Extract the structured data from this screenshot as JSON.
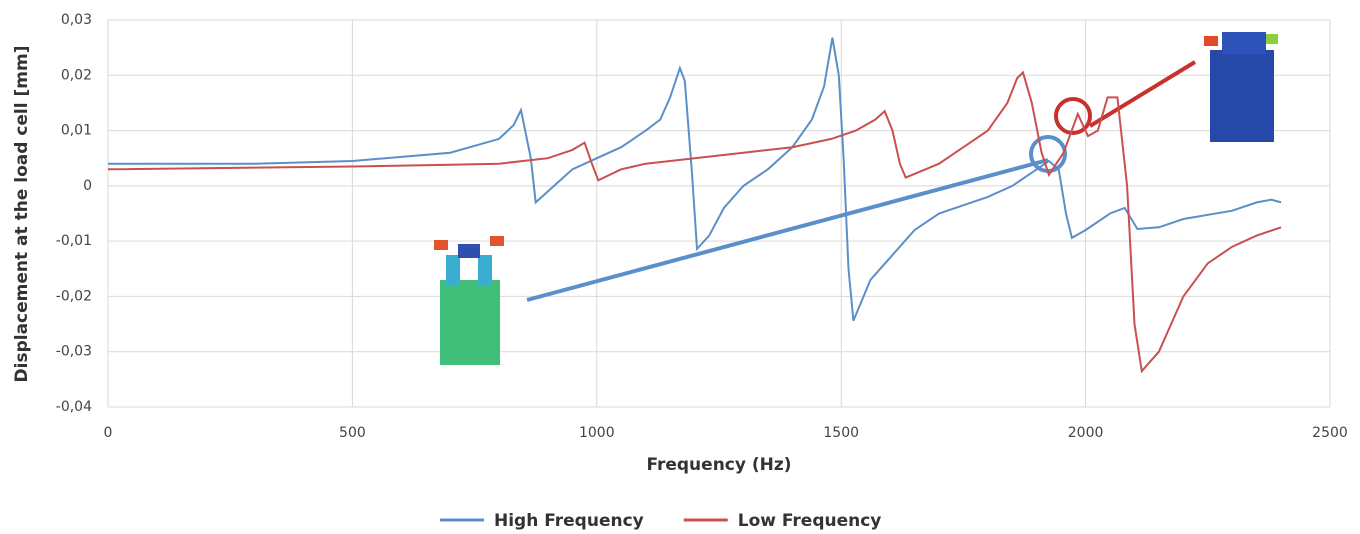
{
  "chart_data": {
    "type": "line",
    "x_label": "Frequency (Hz)",
    "y_label": "Displacement at the load cell [mm]",
    "xlim": [
      0,
      2500
    ],
    "xticks": [
      0,
      500,
      1000,
      1500,
      2000,
      2500
    ],
    "ylim": [
      -0.04,
      0.03
    ],
    "yticks": [
      {
        "value": -0.04,
        "label": "-0,04"
      },
      {
        "value": -0.03,
        "label": "-0,03"
      },
      {
        "value": -0.02,
        "label": "-0,02"
      },
      {
        "value": -0.01,
        "label": "-0,01"
      },
      0,
      {
        "value": 0.01,
        "label": "0,01"
      },
      {
        "value": 0.02,
        "label": "0,02"
      },
      {
        "value": 0.03,
        "label": "0,03"
      }
    ],
    "grid": true,
    "legend": "bottom",
    "series": [
      {
        "name": "High Frequency",
        "color": "#5b8fc9",
        "x": [
          0,
          300,
          500,
          700,
          800,
          830,
          845,
          865,
          875,
          900,
          950,
          1000,
          1050,
          1100,
          1130,
          1150,
          1170,
          1180,
          1195,
          1205,
          1230,
          1260,
          1300,
          1350,
          1400,
          1440,
          1465,
          1482,
          1495,
          1505,
          1515,
          1525,
          1560,
          1600,
          1650,
          1700,
          1800,
          1850,
          1900,
          1925,
          1945,
          1960,
          1972,
          2000,
          2050,
          2080,
          2106,
          2150,
          2200,
          2300,
          2350,
          2380,
          2400
        ],
        "values": [
          0.004,
          0.004,
          0.0045,
          0.006,
          0.0085,
          0.011,
          0.0137,
          0.005,
          -0.003,
          -0.001,
          0.003,
          0.005,
          0.007,
          0.01,
          0.012,
          0.016,
          0.0213,
          0.019,
          0.002,
          -0.0114,
          -0.009,
          -0.004,
          0,
          0.003,
          0.007,
          0.012,
          0.018,
          0.0268,
          0.02,
          0.005,
          -0.015,
          -0.0244,
          -0.017,
          -0.013,
          -0.008,
          -0.005,
          -0.002,
          0,
          0.003,
          0.0045,
          0.003,
          -0.005,
          -0.0094,
          -0.008,
          -0.005,
          -0.004,
          -0.0078,
          -0.0075,
          -0.006,
          -0.0045,
          -0.003,
          -0.0025,
          -0.003
        ]
      },
      {
        "name": "Low Frequency",
        "color": "#c9504f",
        "x": [
          0,
          500,
          700,
          800,
          900,
          950,
          975,
          990,
          1003,
          1050,
          1100,
          1200,
          1300,
          1400,
          1480,
          1530,
          1570,
          1589,
          1605,
          1620,
          1632,
          1700,
          1750,
          1800,
          1840,
          1860,
          1872,
          1890,
          1910,
          1925,
          1955,
          1984,
          2005,
          2025,
          2045,
          2065,
          2085,
          2100,
          2115,
          2150,
          2200,
          2250,
          2300,
          2350,
          2400
        ],
        "values": [
          0.003,
          0.0035,
          0.0038,
          0.004,
          0.005,
          0.0065,
          0.0078,
          0.004,
          0.001,
          0.003,
          0.004,
          0.005,
          0.006,
          0.007,
          0.0085,
          0.01,
          0.012,
          0.0135,
          0.01,
          0.004,
          0.0015,
          0.004,
          0.007,
          0.01,
          0.015,
          0.0195,
          0.0205,
          0.015,
          0.006,
          0.002,
          0.006,
          0.013,
          0.009,
          0.01,
          0.016,
          0.016,
          0,
          -0.025,
          -0.0335,
          -0.03,
          -0.02,
          -0.014,
          -0.011,
          -0.009,
          -0.0075
        ]
      }
    ]
  }
}
